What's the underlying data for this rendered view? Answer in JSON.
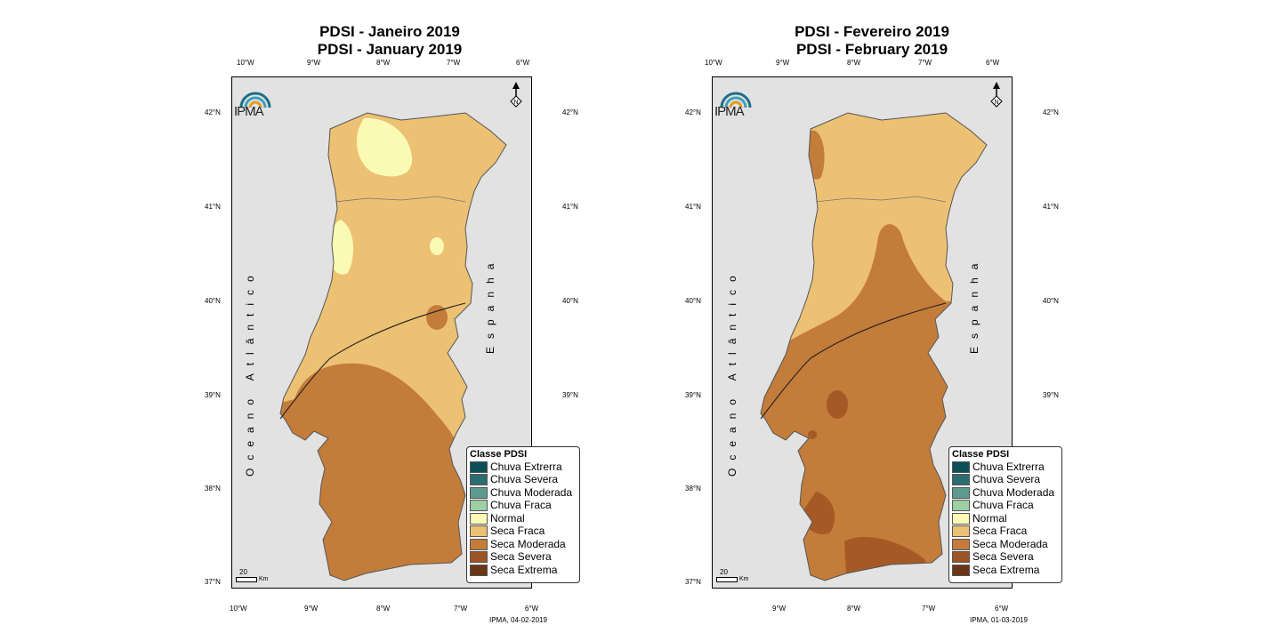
{
  "colors": {
    "normal": "#fbfab4",
    "seca_fraca": "#ecc173",
    "seca_moderada": "#c47c3a",
    "seca_severa": "#a55a26",
    "spain": "#e2e2e2"
  },
  "legend": {
    "title": "Classe PDSI",
    "items": [
      {
        "label": "Chuva Extrerra",
        "color": "#0d4f57"
      },
      {
        "label": "Chuva Severa",
        "color": "#2c6d72"
      },
      {
        "label": "Chuva Moderada",
        "color": "#5f9a8e"
      },
      {
        "label": "Chuva Fraca",
        "color": "#9ccfa2"
      },
      {
        "label": "Normal",
        "color": "#fbfab4"
      },
      {
        "label": "Seca Fraca",
        "color": "#ecc173"
      },
      {
        "label": "Seca Moderada",
        "color": "#c47c3a"
      },
      {
        "label": "Seca Severa",
        "color": "#9b5527"
      },
      {
        "label": "Seca Extrema",
        "color": "#6b3616"
      }
    ]
  },
  "ticks": {
    "lon_top": [
      "10°W",
      "9°W",
      "8°W",
      "7°W",
      "6°W"
    ],
    "lon_bottom": [
      "10°W",
      "9°W",
      "8°W",
      "7°W",
      "6°W"
    ],
    "lat": [
      "42°N",
      "41°N",
      "40°N",
      "39°N",
      "38°N",
      "37°N"
    ]
  },
  "labels": {
    "ocean": "Oceano Atlântico",
    "spain": "Espanha",
    "logo": "IPMA",
    "scale_value": "20",
    "scale_unit": "Km",
    "north": "N"
  },
  "panels": [
    {
      "title_pt": "PDSI - Janeiro 2019",
      "title_en": "PDSI - January 2019",
      "footer": "IPMA, 04-02-2019"
    },
    {
      "title_pt": "PDSI - Fevereiro 2019",
      "title_en": "PDSI - February 2019",
      "footer": "IPMA, 01-03-2019"
    }
  ]
}
